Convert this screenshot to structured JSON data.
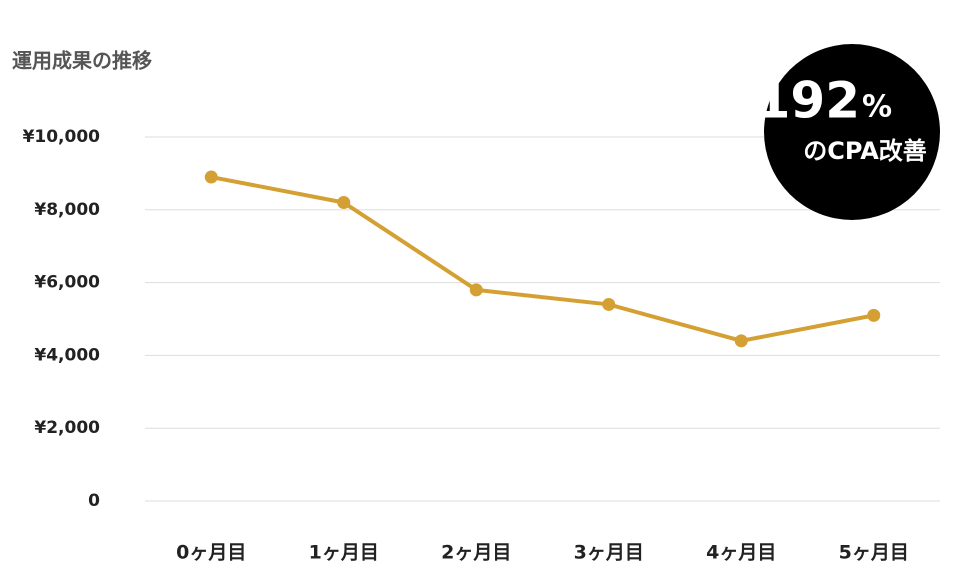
{
  "chart_data": {
    "type": "line",
    "title": "運用成果の推移",
    "categories": [
      "0ヶ月目",
      "1ヶ月目",
      "2ヶ月目",
      "3ヶ月目",
      "4ヶ月目",
      "5ヶ月目"
    ],
    "series": [
      {
        "name": "CPA",
        "color": "#d4a033",
        "values": [
          8900,
          8200,
          5800,
          5400,
          4400,
          5100
        ]
      }
    ],
    "ylim": [
      0,
      10000
    ],
    "yticks": [
      0,
      {
        "value": 2000,
        "label": "¥2,000"
      },
      {
        "value": 4000,
        "label": "¥4,000"
      },
      {
        "value": 6000,
        "label": "¥6,000"
      },
      {
        "value": 8000,
        "label": "¥8,000"
      },
      {
        "value": 10000,
        "label": "¥10,000"
      }
    ],
    "grid": true,
    "badge_number": "192",
    "badge_unit": "%",
    "badge_text": "のCPA改善"
  }
}
